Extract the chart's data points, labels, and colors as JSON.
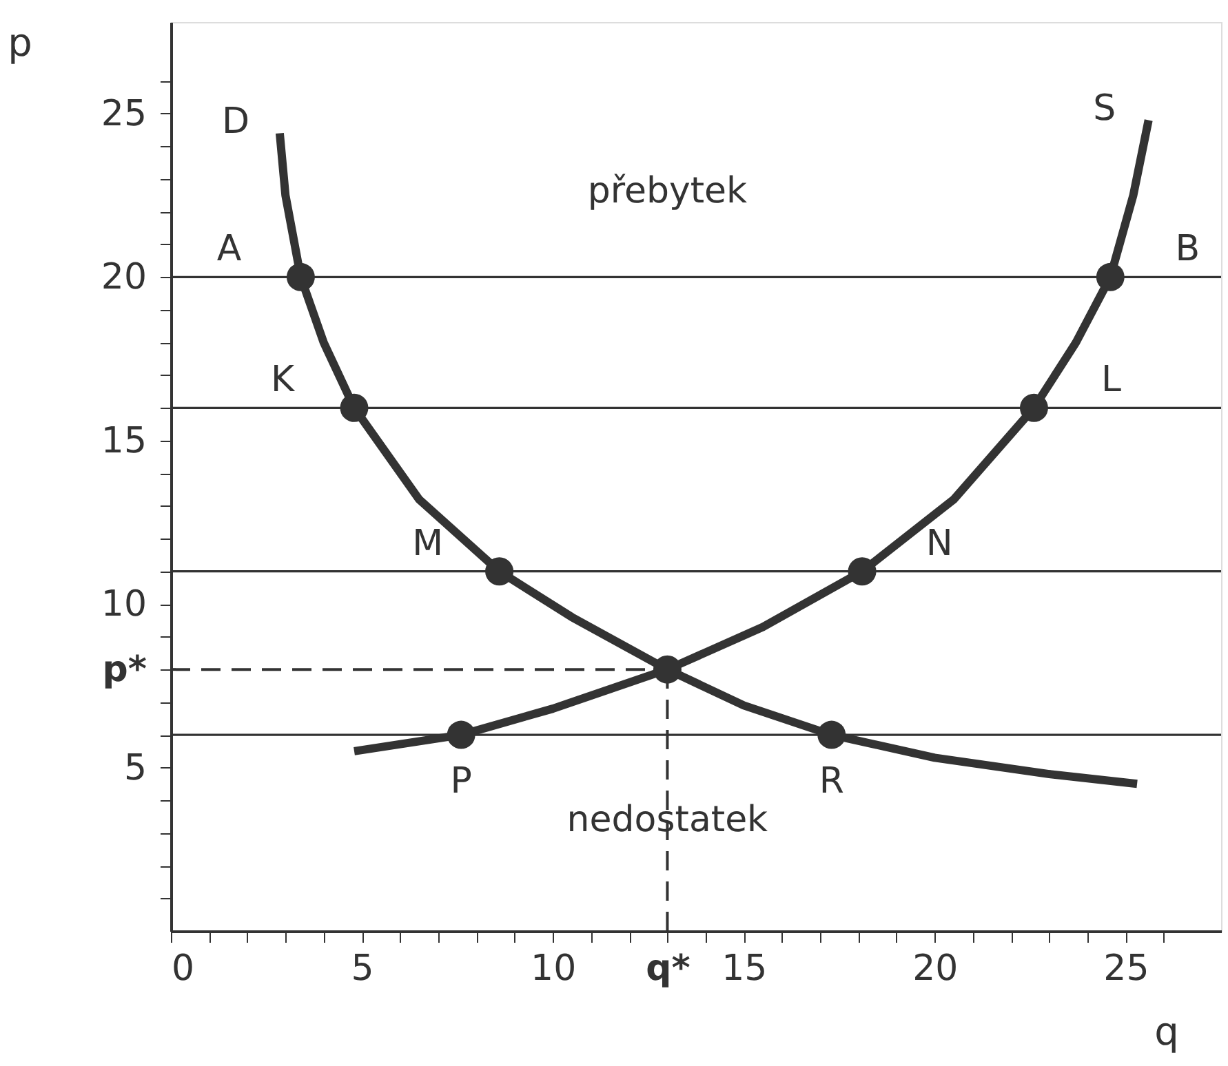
{
  "chart_data": {
    "type": "line",
    "xlabel": "q",
    "ylabel": "p",
    "xlim": [
      0,
      27.5
    ],
    "ylim": [
      0,
      27.8
    ],
    "xticks": [
      0,
      {
        "value": 1,
        "label": null
      },
      {
        "value": 2,
        "label": null
      },
      {
        "value": 3,
        "label": null
      },
      {
        "value": 4,
        "label": null
      },
      5,
      {
        "value": 6,
        "label": null
      },
      {
        "value": 7,
        "label": null
      },
      {
        "value": 8,
        "label": null
      },
      {
        "value": 9,
        "label": null
      },
      10,
      {
        "value": 11,
        "label": null
      },
      {
        "value": 12,
        "label": null
      },
      {
        "value": 13,
        "label": "q*"
      },
      {
        "value": 14,
        "label": null
      },
      15,
      {
        "value": 16,
        "label": null
      },
      {
        "value": 17,
        "label": null
      },
      {
        "value": 18,
        "label": null
      },
      {
        "value": 19,
        "label": null
      },
      20,
      {
        "value": 21,
        "label": null
      },
      {
        "value": 22,
        "label": null
      },
      {
        "value": 23,
        "label": null
      },
      {
        "value": 24,
        "label": null
      },
      25,
      {
        "value": 26,
        "label": null
      }
    ],
    "yticks": [
      {
        "value": 1,
        "label": null
      },
      {
        "value": 2,
        "label": null
      },
      {
        "value": 3,
        "label": null
      },
      {
        "value": 4,
        "label": null
      },
      5,
      {
        "value": 6,
        "label": null
      },
      {
        "value": 7,
        "label": null
      },
      {
        "value": 8,
        "label": "p*"
      },
      {
        "value": 9,
        "label": null
      },
      10,
      {
        "value": 11,
        "label": null
      },
      {
        "value": 12,
        "label": null
      },
      {
        "value": 13,
        "label": null
      },
      {
        "value": 14,
        "label": null
      },
      15,
      {
        "value": 16,
        "label": null
      },
      {
        "value": 17,
        "label": null
      },
      {
        "value": 18,
        "label": null
      },
      {
        "value": 19,
        "label": null
      },
      20,
      {
        "value": 21,
        "label": null
      },
      {
        "value": 22,
        "label": null
      },
      {
        "value": 23,
        "label": null
      },
      {
        "value": 24,
        "label": null
      },
      25,
      {
        "value": 26,
        "label": null
      }
    ],
    "series": [
      {
        "name": "D",
        "color": "#333333",
        "marker": "none",
        "line_style": "solid",
        "x": [
          2.85,
          3.0,
          3.4,
          4.0,
          4.8,
          6.5,
          8.6,
          10.5,
          13,
          15,
          17.3,
          20,
          23,
          25.3
        ],
        "values": [
          24.4,
          22.5,
          20,
          18,
          16,
          13.2,
          11,
          9.6,
          8,
          6.9,
          6,
          5.3,
          4.8,
          4.5
        ]
      },
      {
        "name": "S",
        "color": "#333333",
        "marker": "none",
        "line_style": "solid",
        "x": [
          4.8,
          7.6,
          10,
          13,
          15.5,
          18.1,
          20.5,
          22.6,
          23.7,
          24.6,
          25.2,
          25.6
        ],
        "values": [
          5.5,
          6,
          6.8,
          8,
          9.3,
          11,
          13.2,
          16,
          18,
          20,
          22.5,
          24.8
        ]
      },
      {
        "color": "#333333",
        "marker": "none",
        "line_style": "dashed",
        "x": [
          0,
          13
        ],
        "values": [
          8,
          8
        ]
      },
      {
        "color": "#333333",
        "marker": "none",
        "line_style": "dashed",
        "x": [
          13,
          13
        ],
        "values": [
          0,
          8
        ]
      },
      {
        "type": "scatter",
        "color": "#333333",
        "marker": "circle",
        "x": [
          3.4,
          4.8,
          8.6,
          13,
          7.6,
          17.3,
          18.1,
          22.6,
          24.6
        ],
        "values": [
          20,
          16,
          11,
          8,
          6,
          6,
          11,
          16,
          20
        ],
        "value_labels": [
          "A",
          "K",
          "M",
          null,
          "P",
          "R",
          "N",
          "L",
          "B"
        ]
      }
    ],
    "ref_lines": [
      {
        "axis": "y",
        "value": 20,
        "color": "#333333",
        "label": "přebytek"
      },
      {
        "axis": "y",
        "value": 16,
        "color": "#333333"
      },
      {
        "axis": "y",
        "value": 11,
        "color": "#333333"
      },
      {
        "axis": "y",
        "value": 6,
        "color": "#333333",
        "label": "nedostatek"
      }
    ]
  }
}
